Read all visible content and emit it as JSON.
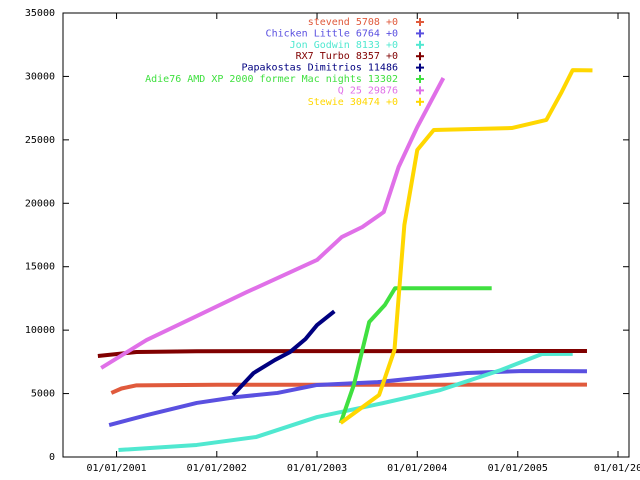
{
  "chart_data": {
    "type": "line",
    "xlim": [
      "2000-06-20",
      "2006-02-10"
    ],
    "ylim": [
      0,
      35000
    ],
    "yticks": [
      0,
      5000,
      10000,
      15000,
      20000,
      25000,
      30000,
      35000
    ],
    "xticks": [
      {
        "value": "2001-01-01",
        "label": "01/01/2001"
      },
      {
        "value": "2002-01-01",
        "label": "01/01/2002"
      },
      {
        "value": "2003-01-01",
        "label": "01/01/2003"
      },
      {
        "value": "2004-01-01",
        "label": "01/01/2004"
      },
      {
        "value": "2005-01-01",
        "label": "01/01/2005"
      },
      {
        "value": "2006-01-01",
        "label": "01/01/20"
      }
    ],
    "grid": false,
    "legend": "top-right",
    "series": [
      {
        "name": "stevend 5708 +0",
        "color": "#e05a3c",
        "x": [
          "2000-12-13",
          "2001-01-19",
          "2001-03-15",
          "2002-01-01",
          "2003-01-01",
          "2004-01-01",
          "2005-09-10"
        ],
        "values": [
          5050,
          5400,
          5650,
          5700,
          5700,
          5700,
          5708
        ]
      },
      {
        "name": "Chicken Little 6764 +0",
        "color": "#5a50e0",
        "x": [
          "2000-12-05",
          "2001-04-20",
          "2001-10-20",
          "2002-03-15",
          "2002-08-10",
          "2003-01-01",
          "2003-08-10",
          "2004-01-01",
          "2004-07-01",
          "2005-01-20",
          "2005-09-10"
        ],
        "values": [
          2520,
          3300,
          4260,
          4730,
          5050,
          5680,
          5900,
          6230,
          6620,
          6780,
          6764
        ]
      },
      {
        "name": "Jon Godwin 8133 +0",
        "color": "#50e8d0",
        "x": [
          "2001-01-08",
          "2001-10-20",
          "2002-05-25",
          "2003-01-01",
          "2003-08-15",
          "2004-03-25",
          "2004-11-01",
          "2005-03-30",
          "2005-07-20"
        ],
        "values": [
          550,
          950,
          1580,
          3150,
          4180,
          5280,
          6860,
          8120,
          8133
        ]
      },
      {
        "name": "RX7 Turbo 8357 +0",
        "color": "#800000",
        "x": [
          "2000-10-25",
          "2001-03-15",
          "2001-10-20",
          "2005-09-10"
        ],
        "values": [
          7960,
          8280,
          8340,
          8357
        ]
      },
      {
        "name": "Papakostas Dimitrios 11486",
        "color": "#000080",
        "x": [
          "2002-03-01",
          "2002-05-15",
          "2002-08-01",
          "2002-09-25",
          "2002-11-20",
          "2003-01-01",
          "2003-03-05"
        ],
        "values": [
          4890,
          6620,
          7650,
          8280,
          9300,
          10400,
          11486
        ]
      },
      {
        "name": "Adie76   AMD XP 2000  former Mac nights  13302",
        "color": "#40e040",
        "x": [
          "2003-03-28",
          "2003-05-15",
          "2003-07-10",
          "2003-09-05",
          "2003-10-12",
          "2004-09-28"
        ],
        "values": [
          2680,
          5680,
          10640,
          11980,
          13302,
          13302
        ]
      },
      {
        "name": "Q 25 29876",
        "color": "#e070e8",
        "x": [
          "2000-11-06",
          "2001-04-20",
          "2001-10-20",
          "2002-04-20",
          "2003-01-01",
          "2003-04-01",
          "2003-06-15",
          "2003-09-01",
          "2003-10-25",
          "2004-01-01",
          "2004-04-05"
        ],
        "values": [
          7020,
          9220,
          11110,
          13000,
          15530,
          17340,
          18130,
          19310,
          22860,
          26010,
          29876
        ]
      },
      {
        "name": "Stewie 30474 +0",
        "color": "#ffd700",
        "x": [
          "2003-03-28",
          "2003-08-15",
          "2003-10-10",
          "2003-11-15",
          "2004-01-01",
          "2004-03-01",
          "2004-12-10",
          "2005-04-15",
          "2005-06-10",
          "2005-07-20",
          "2005-09-30"
        ],
        "values": [
          2680,
          4890,
          8430,
          18290,
          24200,
          25780,
          25930,
          26570,
          28780,
          30500,
          30474
        ]
      }
    ]
  }
}
